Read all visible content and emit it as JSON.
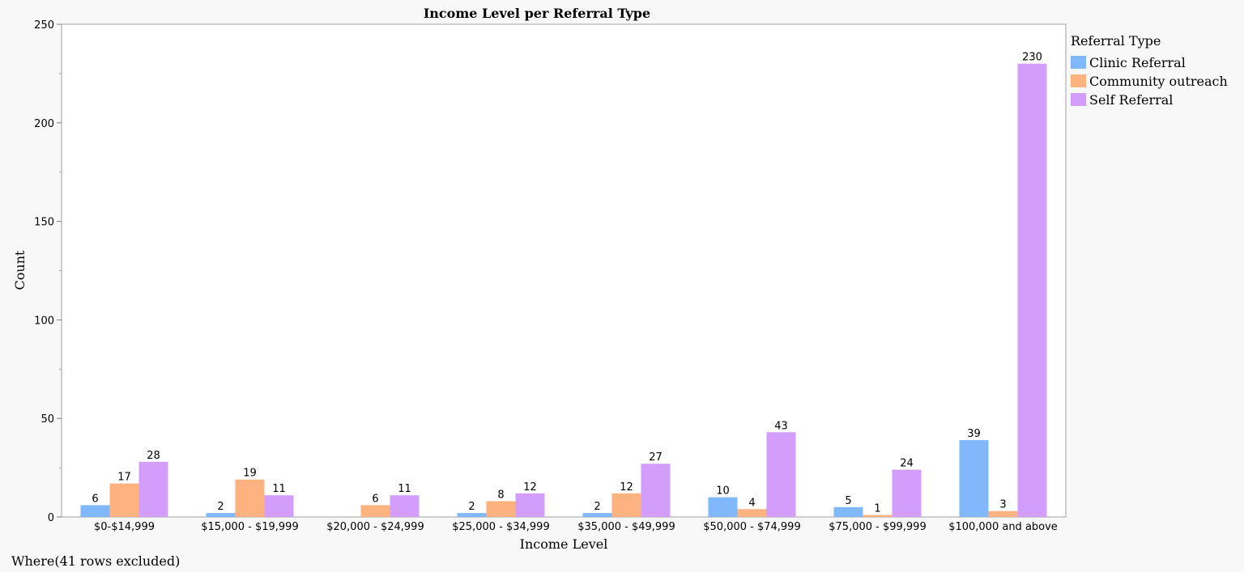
{
  "footnote": "Where(41 rows excluded)",
  "chart_data": {
    "type": "bar",
    "title": "Income Level per Referral Type",
    "xlabel": "Income Level",
    "ylabel": "Count",
    "ylim": [
      0,
      250
    ],
    "yticks": [
      0,
      50,
      100,
      150,
      200,
      250
    ],
    "grid": false,
    "legend_title": "Referral Type",
    "legend_position": "right",
    "categories": [
      "$0-$14,999",
      "$15,000 - $19,999",
      "$20,000 - $24,999",
      "$25,000 - $34,999",
      "$35,000 - $49,999",
      "$50,000 - $74,999",
      "$75,000 - $99,999",
      "$100,000 and above"
    ],
    "series": [
      {
        "name": "Clinic Referral",
        "color": "#80b8fb",
        "values": [
          6,
          2,
          null,
          2,
          2,
          10,
          5,
          39
        ]
      },
      {
        "name": "Community outreach",
        "color": "#feb280",
        "values": [
          17,
          19,
          6,
          8,
          12,
          4,
          1,
          3
        ]
      },
      {
        "name": "Self Referral",
        "color": "#d39dfc",
        "values": [
          28,
          11,
          11,
          12,
          27,
          43,
          24,
          230
        ]
      }
    ]
  }
}
